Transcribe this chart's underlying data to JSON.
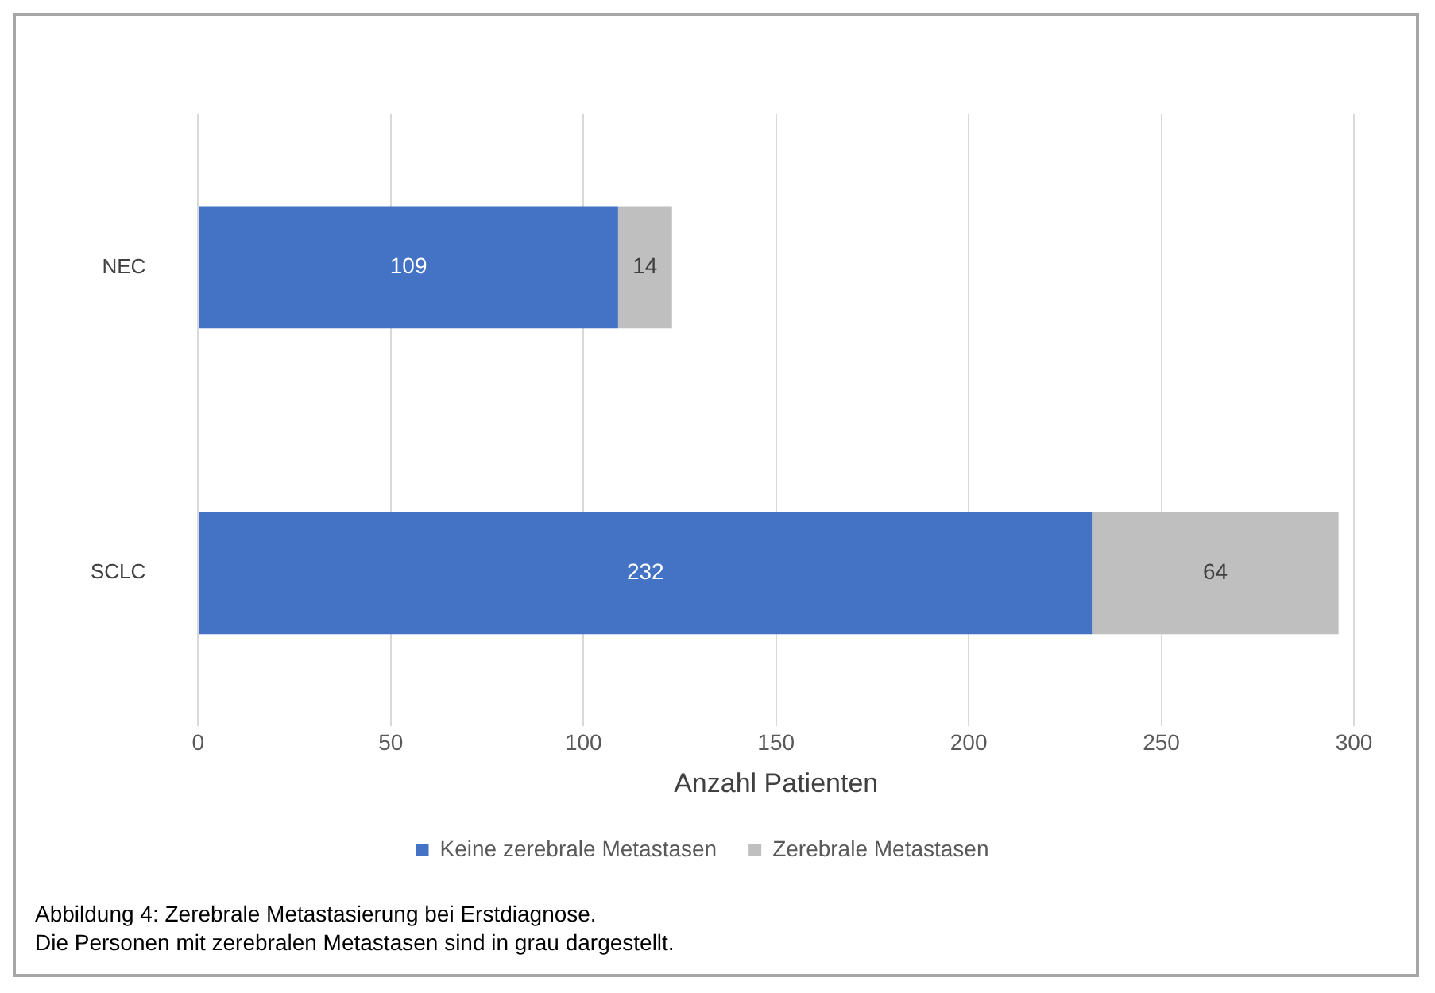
{
  "chart_data": {
    "type": "bar",
    "orientation": "horizontal",
    "stacked": true,
    "categories": [
      "NEC",
      "SCLC"
    ],
    "series": [
      {
        "name": "Keine zerebrale Metastasen",
        "color": "#4472c4",
        "values": [
          109,
          232
        ]
      },
      {
        "name": "Zerebrale Metastasen",
        "color": "#bfbfbf",
        "values": [
          14,
          64
        ]
      }
    ],
    "xlim": [
      0,
      300
    ],
    "xticks": [
      0,
      50,
      100,
      150,
      200,
      250,
      300
    ],
    "xlabel": "Anzahl Patienten",
    "grid": "x",
    "legend": "bottom",
    "data_labels": true,
    "annotations": [
      "Abbildung 4: Zerebrale Metastasierung bei Erstdiagnose.",
      "Die Personen mit zerebralen Metastasen sind in grau dargestellt."
    ]
  }
}
